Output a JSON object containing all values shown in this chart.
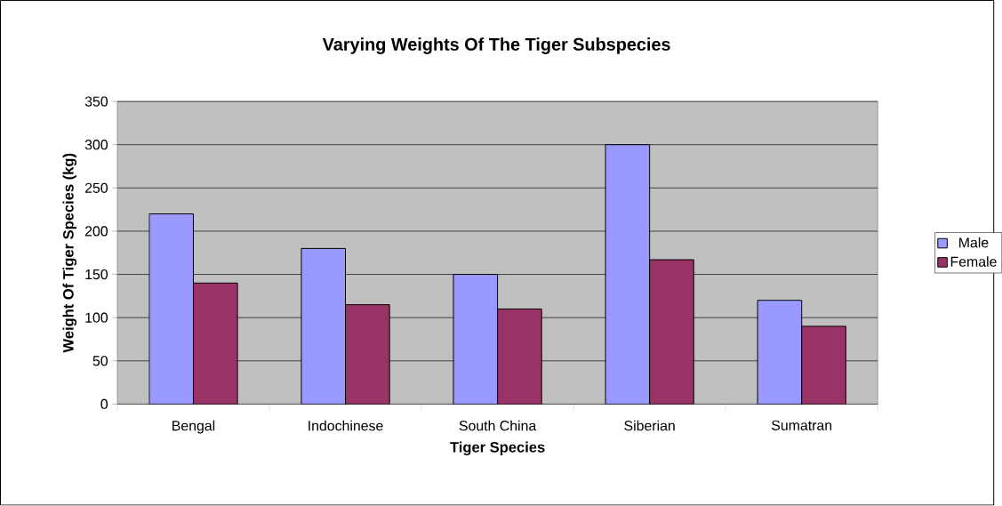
{
  "chart_data": {
    "type": "bar",
    "title": "Varying Weights Of The Tiger Subspecies",
    "xlabel": "Tiger Species",
    "ylabel": "Weight Of Tiger Species (kg)",
    "categories": [
      "Bengal",
      "Indochinese",
      "South China",
      "Siberian",
      "Sumatran"
    ],
    "series": [
      {
        "name": "Male",
        "color": "#9999ff",
        "values": [
          220,
          180,
          150,
          300,
          120
        ]
      },
      {
        "name": "Female",
        "color": "#993366",
        "values": [
          140,
          115,
          110,
          167,
          90
        ]
      }
    ],
    "ylim": [
      0,
      350
    ],
    "yticks": [
      0,
      50,
      100,
      150,
      200,
      250,
      300,
      350
    ],
    "grid": "y",
    "legend": "right"
  }
}
